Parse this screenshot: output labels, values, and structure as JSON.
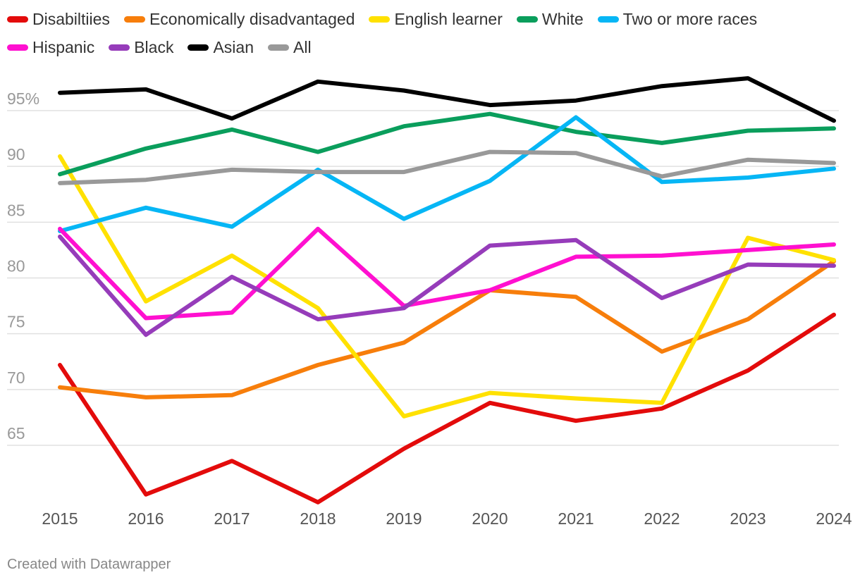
{
  "chart_data": {
    "type": "line",
    "title": "",
    "xlabel": "",
    "ylabel": "",
    "x": [
      "2015",
      "2016",
      "2017",
      "2018",
      "2019",
      "2020",
      "2021",
      "2022",
      "2023",
      "2024"
    ],
    "ylim": [
      59,
      98.5
    ],
    "yticks": [
      {
        "value": 95,
        "label": "95%"
      },
      {
        "value": 90,
        "label": "90"
      },
      {
        "value": 85,
        "label": "85"
      },
      {
        "value": 80,
        "label": "80"
      },
      {
        "value": 75,
        "label": "75"
      },
      {
        "value": 70,
        "label": "70"
      },
      {
        "value": 65,
        "label": "65"
      }
    ],
    "series": [
      {
        "name": "Disabiltiies",
        "color": "#e30b0b",
        "values": [
          72.2,
          60.6,
          63.6,
          59.9,
          64.7,
          68.8,
          67.2,
          68.3,
          71.7,
          76.7
        ]
      },
      {
        "name": "Economically disadvantaged",
        "color": "#f77e0b",
        "values": [
          70.2,
          69.3,
          69.5,
          72.2,
          74.2,
          78.9,
          78.3,
          73.4,
          76.3,
          81.5
        ]
      },
      {
        "name": "English learner",
        "color": "#ffe100",
        "values": [
          90.9,
          77.9,
          82.0,
          77.3,
          67.6,
          69.7,
          69.2,
          68.8,
          83.6,
          81.6
        ]
      },
      {
        "name": "White",
        "color": "#0a9e5c",
        "values": [
          89.3,
          91.6,
          93.3,
          91.3,
          93.6,
          94.7,
          93.1,
          92.1,
          93.2,
          93.4
        ]
      },
      {
        "name": "Two or more races",
        "color": "#06b6f5",
        "values": [
          84.2,
          86.3,
          84.6,
          89.7,
          85.3,
          88.7,
          94.4,
          88.6,
          89.0,
          89.8
        ]
      },
      {
        "name": "Hispanic",
        "color": "#ff10d0",
        "values": [
          84.4,
          76.4,
          76.9,
          84.4,
          77.5,
          78.9,
          81.9,
          82.0,
          82.5,
          83.0
        ]
      },
      {
        "name": "Black",
        "color": "#963cba",
        "values": [
          83.7,
          74.9,
          80.1,
          76.3,
          77.3,
          82.9,
          83.4,
          78.2,
          81.2,
          81.1
        ]
      },
      {
        "name": "Asian",
        "color": "#000000",
        "values": [
          96.6,
          96.9,
          94.3,
          97.6,
          96.8,
          95.5,
          95.9,
          97.2,
          97.9,
          94.1
        ]
      },
      {
        "name": "All",
        "color": "#999999",
        "values": [
          88.5,
          88.8,
          89.7,
          89.5,
          89.5,
          91.3,
          91.2,
          89.1,
          90.6,
          90.3
        ]
      }
    ]
  },
  "credit": "Created with Datawrapper"
}
